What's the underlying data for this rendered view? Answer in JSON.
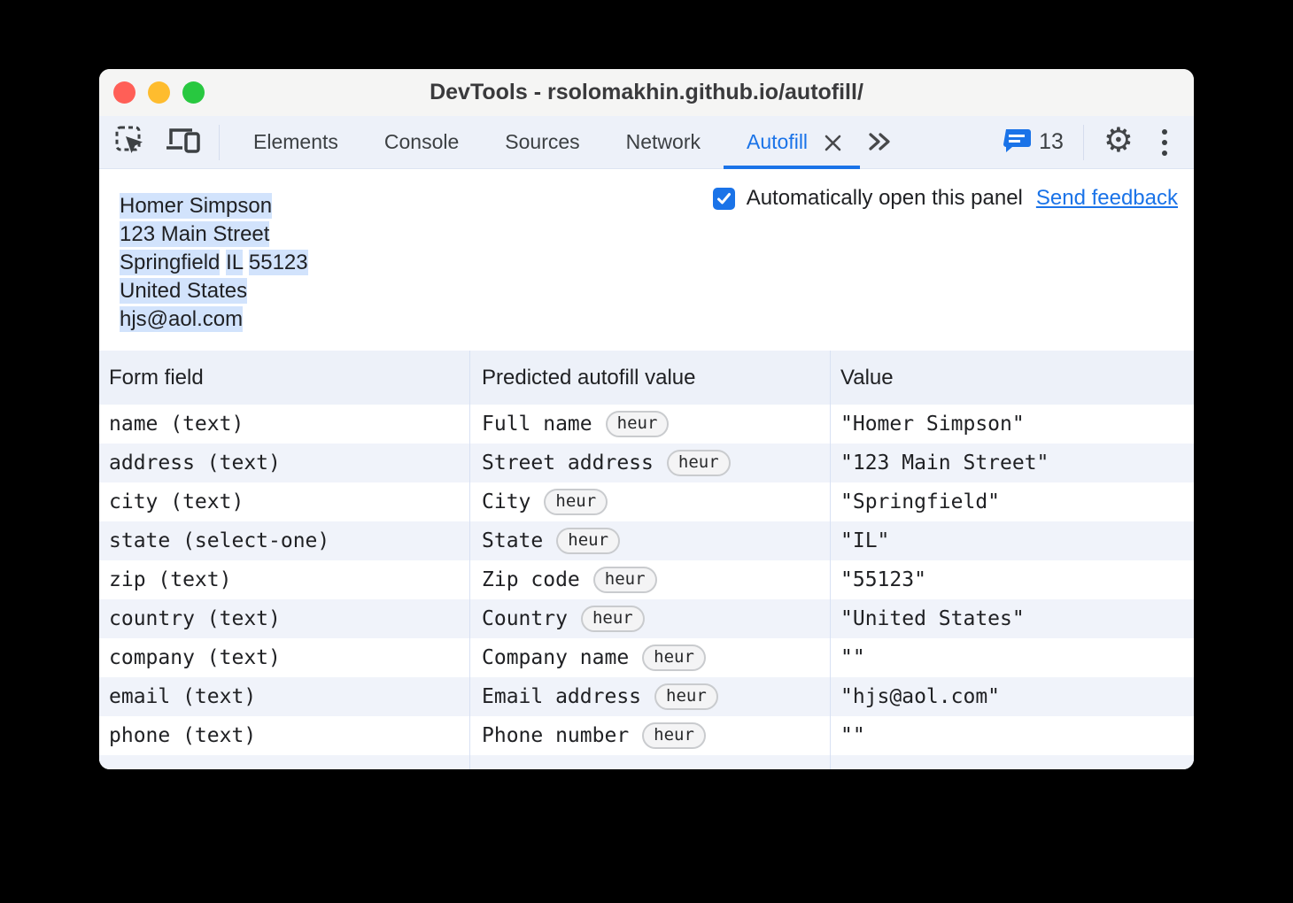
{
  "window_title": "DevTools - rsolomakhin.github.io/autofill/",
  "toolbar": {
    "tabs": [
      {
        "label": "Elements"
      },
      {
        "label": "Console"
      },
      {
        "label": "Sources"
      },
      {
        "label": "Network"
      },
      {
        "label": "Autofill"
      }
    ],
    "active_tab": "Autofill",
    "message_count": "13",
    "icons": {
      "inspect": "inspect-element-icon",
      "device": "device-toolbar-icon",
      "close_tab": "close-icon",
      "more_tabs": "more-tabs-chevrons-icon",
      "messages": "console-messages-icon",
      "settings": "settings-gear-icon",
      "menu": "kebab-menu-icon"
    }
  },
  "panel": {
    "address_lines": [
      {
        "segments": [
          "Homer Simpson"
        ]
      },
      {
        "segments": [
          "123 Main Street"
        ]
      },
      {
        "segments": [
          "Springfield",
          "IL",
          "55123"
        ]
      },
      {
        "segments": [
          "United States"
        ]
      },
      {
        "segments": [
          "hjs@aol.com"
        ]
      }
    ],
    "auto_open_label": "Automatically open this panel",
    "auto_open_checked": true,
    "feedback_link": "Send feedback"
  },
  "table": {
    "columns": [
      "Form field",
      "Predicted autofill value",
      "Value"
    ],
    "rows": [
      {
        "field": "name (text)",
        "predicted": "Full name",
        "badge": "heur",
        "value": "\"Homer Simpson\""
      },
      {
        "field": "address (text)",
        "predicted": "Street address",
        "badge": "heur",
        "value": "\"123 Main Street\""
      },
      {
        "field": "city (text)",
        "predicted": "City",
        "badge": "heur",
        "value": "\"Springfield\""
      },
      {
        "field": "state (select-one)",
        "predicted": "State",
        "badge": "heur",
        "value": "\"IL\""
      },
      {
        "field": "zip (text)",
        "predicted": "Zip code",
        "badge": "heur",
        "value": "\"55123\""
      },
      {
        "field": "country (text)",
        "predicted": "Country",
        "badge": "heur",
        "value": "\"United States\""
      },
      {
        "field": "company (text)",
        "predicted": "Company name",
        "badge": "heur",
        "value": "\"\""
      },
      {
        "field": "email (text)",
        "predicted": "Email address",
        "badge": "heur",
        "value": "\"hjs@aol.com\""
      },
      {
        "field": "phone (text)",
        "predicted": "Phone number",
        "badge": "heur",
        "value": "\"\""
      }
    ]
  },
  "colors": {
    "accent": "#1a73e8",
    "selection_highlight": "#d2e3fc",
    "toolbar_bg": "#edf1f9",
    "row_alt_bg": "#f0f3fa",
    "divider": "#d8e1f3",
    "text": "#202124",
    "traffic_red": "#ff5f57",
    "traffic_yellow": "#febc2e",
    "traffic_green": "#28c840"
  }
}
